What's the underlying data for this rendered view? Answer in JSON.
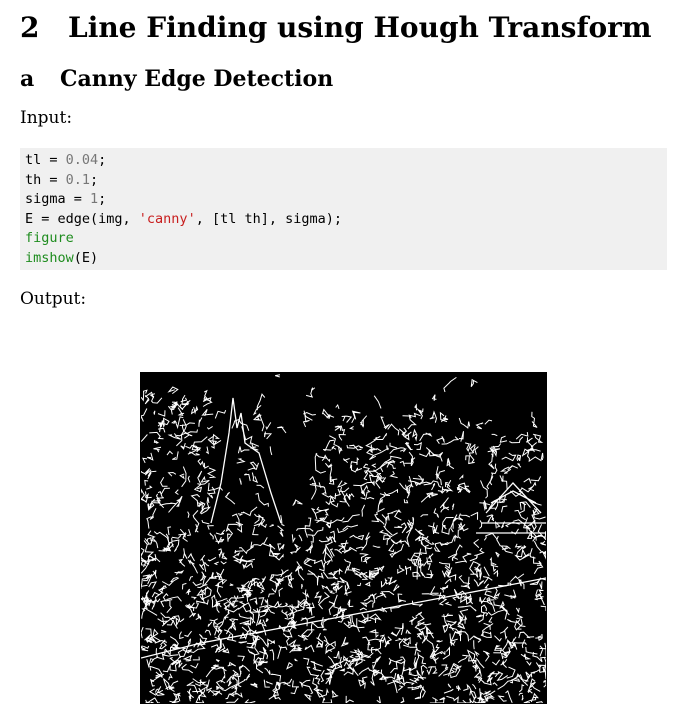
{
  "section": {
    "number": "2",
    "title": "Line Finding using Hough Transform"
  },
  "subsection": {
    "letter": "a",
    "title": "Canny Edge Detection"
  },
  "input_label": "Input:",
  "output_label": "Output:",
  "code": {
    "line1": {
      "lhs": "tl = ",
      "num": "0.04",
      "end": ";"
    },
    "line2": {
      "lhs": "th = ",
      "num": "0.1",
      "end": ";"
    },
    "line3": {
      "lhs": "sigma = ",
      "num": "1",
      "end": ";"
    },
    "line4": {
      "pre": "E = edge(img, ",
      "str": "'canny'",
      "post": ", [tl th], sigma);"
    },
    "line5": {
      "kw": "figure"
    },
    "line6": {
      "kw": "imshow",
      "rest": "(E)"
    }
  },
  "figure": {
    "description_icon": "canny-edge-map-image",
    "background": "#000000",
    "edge_color": "#ffffff"
  }
}
